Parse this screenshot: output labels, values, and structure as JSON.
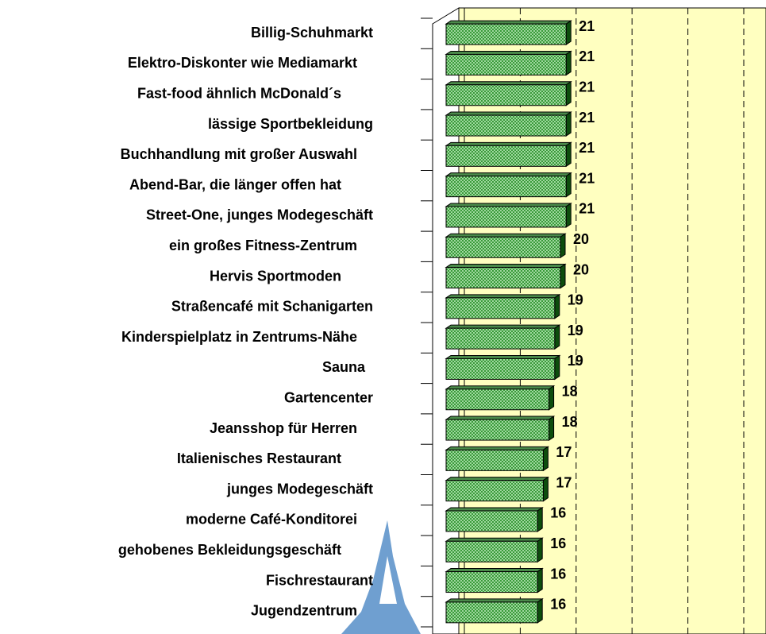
{
  "chart_data": {
    "type": "bar",
    "orientation": "horizontal",
    "categories": [
      "Billig-Schuhmarkt",
      "Elektro-Diskonter wie Mediamarkt",
      "Fast-food ähnlich McDonald´s",
      "lässige Sportbekleidung",
      "Buchhandlung mit großer Auswahl",
      "Abend-Bar, die länger offen hat",
      "Street-One, junges Modegeschäft",
      "ein großes Fitness-Zentrum",
      "Hervis Sportmoden",
      "Straßencafé mit Schanigarten",
      "Kinderspielplatz in Zentrums-Nähe",
      "Sauna",
      "Gartencenter",
      "Jeansshop für Herren",
      "Italienisches Restaurant",
      "junges Modegeschäft",
      "moderne Café-Konditorei",
      "gehobenes Bekleidungsgeschäft",
      "Fischrestaurant",
      "Jugendzentrum"
    ],
    "values": [
      21,
      21,
      21,
      21,
      21,
      21,
      21,
      20,
      20,
      19,
      19,
      19,
      18,
      18,
      17,
      17,
      16,
      16,
      16,
      16
    ],
    "color": "#66bb66",
    "xlim": [
      0,
      50
    ],
    "xticks": [
      0,
      10,
      20,
      30,
      40,
      50
    ],
    "grid": true
  }
}
